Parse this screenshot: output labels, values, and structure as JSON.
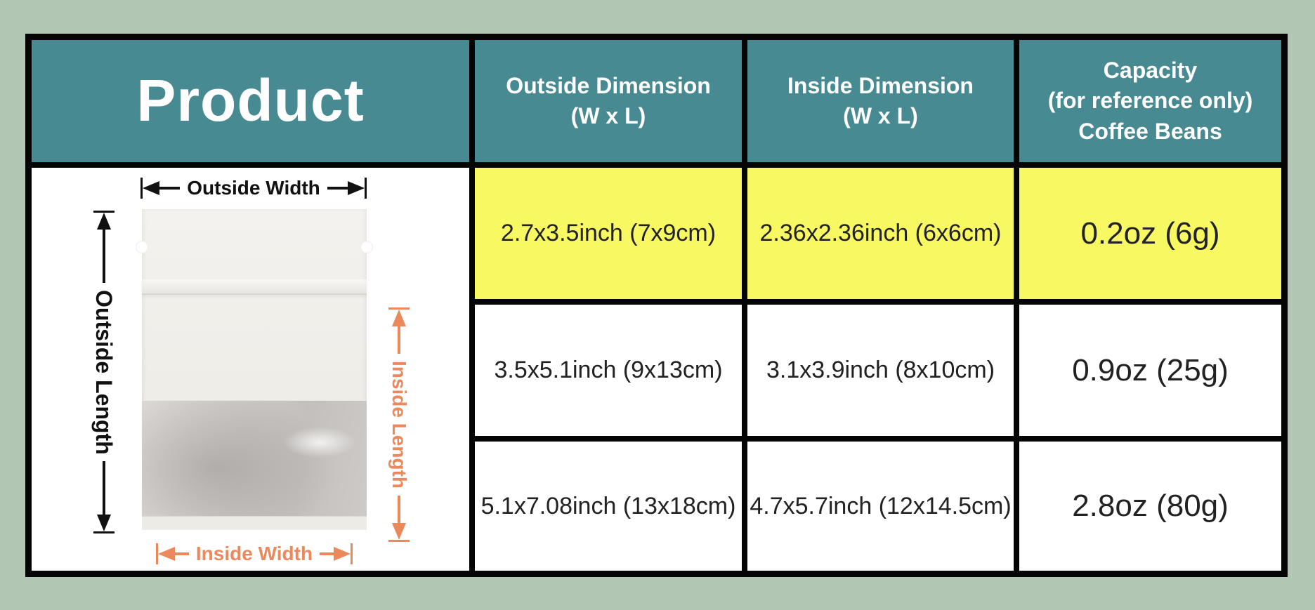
{
  "page": {
    "background_color": "#B2C7B3"
  },
  "colors": {
    "header_teal": "#478A92",
    "highlight_yellow": "#F8F862",
    "annotation_orange": "#EB885C",
    "grid_black": "#050505",
    "header_text": "#FFFFFF",
    "body_text": "#222222"
  },
  "table": {
    "header": {
      "product": "Product",
      "outside_dimension": "Outside Dimension\n(W x L)",
      "inside_dimension": "Inside Dimension\n(W x L)",
      "capacity": "Capacity\n(for reference only)\nCoffee Beans"
    },
    "rows": [
      {
        "outside": "2.7x3.5inch (7x9cm)",
        "inside": "2.36x2.36inch (6x6cm)",
        "capacity": "0.2oz (6g)",
        "highlighted": true
      },
      {
        "outside": "3.5x5.1inch (9x13cm)",
        "inside": "3.1x3.9inch (8x10cm)",
        "capacity": "0.9oz (25g)",
        "highlighted": false
      },
      {
        "outside": "5.1x7.08inch (13x18cm)",
        "inside": "4.7x5.7inch (12x14.5cm)",
        "capacity": "2.8oz (80g)",
        "highlighted": false
      }
    ]
  },
  "diagram": {
    "outside_width_label": "Outside Width",
    "outside_length_label": "Outside Length",
    "inside_width_label": "Inside Width",
    "inside_length_label": "Inside Length"
  }
}
